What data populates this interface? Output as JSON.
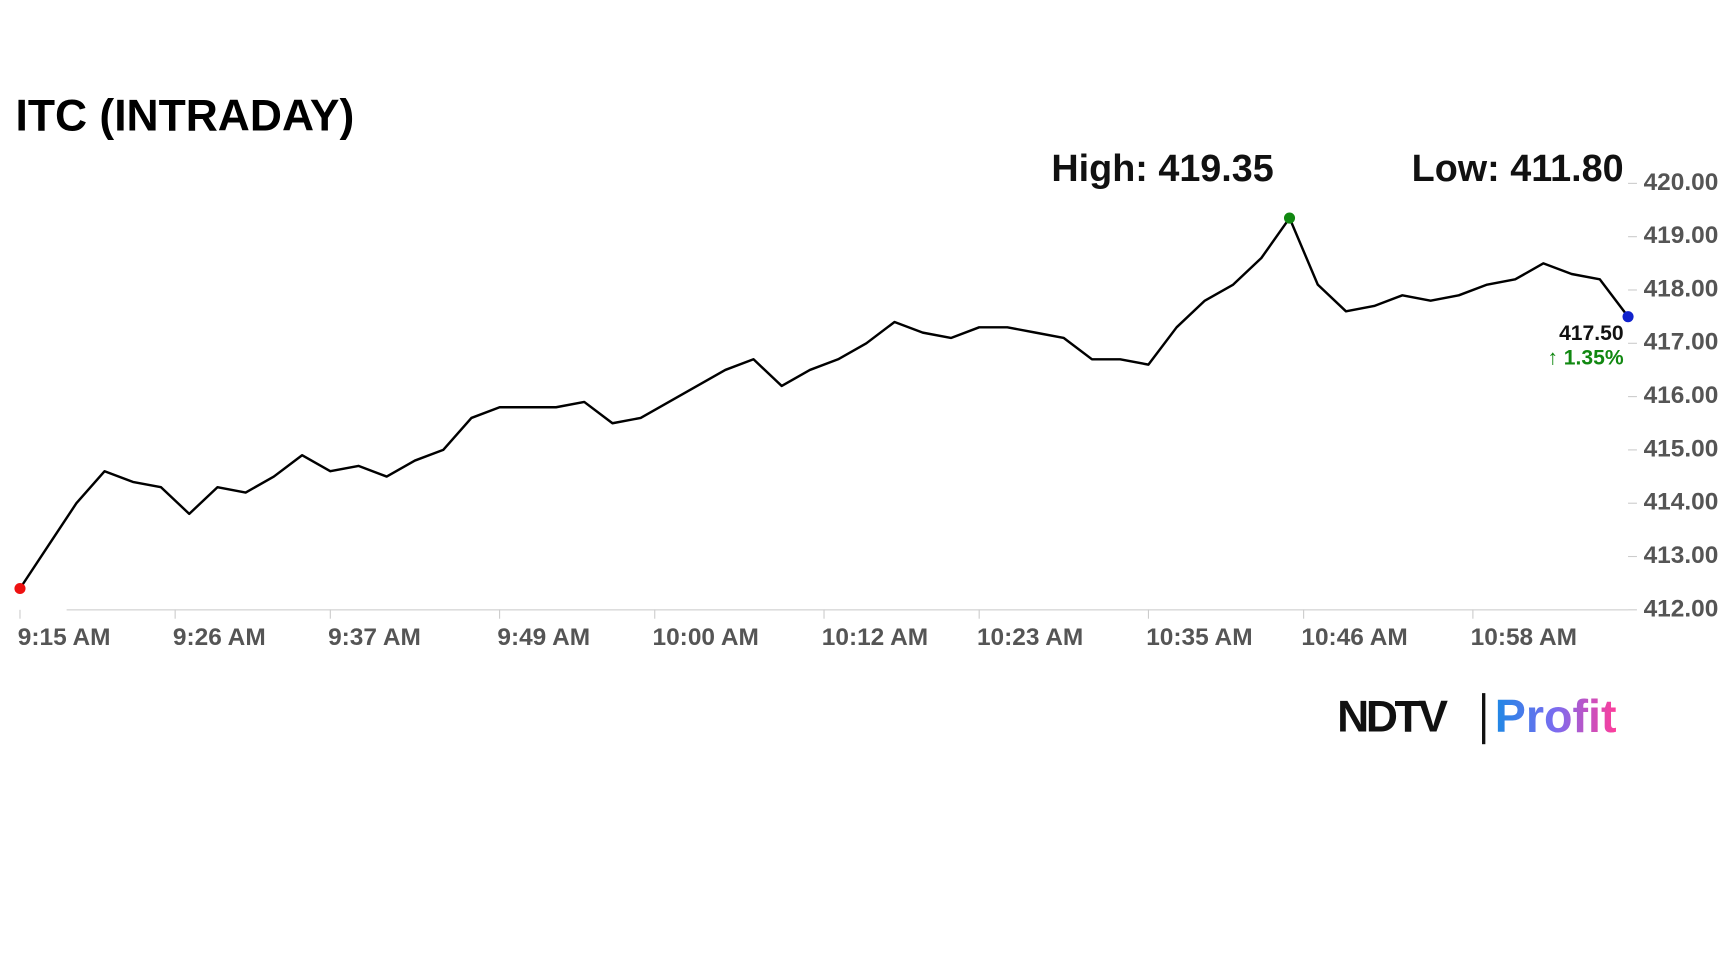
{
  "chart_data": {
    "type": "line",
    "title": "ITC (INTRADAY)",
    "x": [
      "9:15 AM",
      "9:17 AM",
      "9:19 AM",
      "9:21 AM",
      "9:23 AM",
      "9:25 AM",
      "9:27 AM",
      "9:29 AM",
      "9:31 AM",
      "9:33 AM",
      "9:35 AM",
      "9:37 AM",
      "9:39 AM",
      "9:41 AM",
      "9:43 AM",
      "9:45 AM",
      "9:47 AM",
      "9:49 AM",
      "9:51 AM",
      "9:53 AM",
      "9:55 AM",
      "9:57 AM",
      "9:59 AM",
      "10:01 AM",
      "10:03 AM",
      "10:05 AM",
      "10:07 AM",
      "10:09 AM",
      "10:11 AM",
      "10:13 AM",
      "10:15 AM",
      "10:17 AM",
      "10:19 AM",
      "10:21 AM",
      "10:23 AM",
      "10:25 AM",
      "10:27 AM",
      "10:29 AM",
      "10:31 AM",
      "10:33 AM",
      "10:35 AM",
      "10:37 AM",
      "10:39 AM",
      "10:41 AM",
      "10:43 AM",
      "10:45 AM",
      "10:47 AM",
      "10:49 AM",
      "10:51 AM",
      "10:53 AM",
      "10:55 AM",
      "10:57 AM",
      "10:59 AM",
      "11:01 AM",
      "11:03 AM",
      "11:05 AM",
      "11:07 AM",
      "11:09 AM"
    ],
    "series": [
      {
        "name": "ITC",
        "color": "#000000",
        "values": [
          412.4,
          413.2,
          414.0,
          414.6,
          414.4,
          414.3,
          413.8,
          414.3,
          414.2,
          414.5,
          414.9,
          414.6,
          414.7,
          414.5,
          414.8,
          415.0,
          415.6,
          415.8,
          415.8,
          415.8,
          415.9,
          415.5,
          415.6,
          415.9,
          416.2,
          416.5,
          416.7,
          416.2,
          416.5,
          416.7,
          417.0,
          417.4,
          417.2,
          417.1,
          417.3,
          417.3,
          417.2,
          417.1,
          416.7,
          416.7,
          416.6,
          417.3,
          417.8,
          418.1,
          418.6,
          419.35,
          418.1,
          417.6,
          417.7,
          417.9,
          417.8,
          417.9,
          418.1,
          418.2,
          418.5,
          418.3,
          418.2,
          417.5
        ]
      }
    ],
    "ylim": [
      412,
      420
    ],
    "yticks": [
      {
        "value": 412,
        "label": "412.00"
      },
      {
        "value": 413,
        "label": "413.00"
      },
      {
        "value": 414,
        "label": "414.00"
      },
      {
        "value": 415,
        "label": "415.00"
      },
      {
        "value": 416,
        "label": "416.00"
      },
      {
        "value": 417,
        "label": "417.00"
      },
      {
        "value": 418,
        "label": "418.00"
      },
      {
        "value": 419,
        "label": "419.00"
      },
      {
        "value": 420,
        "label": "420.00"
      }
    ],
    "xticks": [
      "9:15 AM",
      "9:26 AM",
      "9:37 AM",
      "9:49 AM",
      "10:00 AM",
      "10:12 AM",
      "10:23 AM",
      "10:35 AM",
      "10:46 AM",
      "10:58 AM"
    ],
    "annotations": {
      "high": "High: 419.35",
      "low": "Low: 411.80",
      "last": "417.50",
      "change": "↑ 1.35%"
    },
    "start_color": "#ee1111",
    "high_color": "#118811",
    "end_color": "#1122cc"
  },
  "logo": {
    "brand": "NDTV",
    "product": "Profit"
  }
}
